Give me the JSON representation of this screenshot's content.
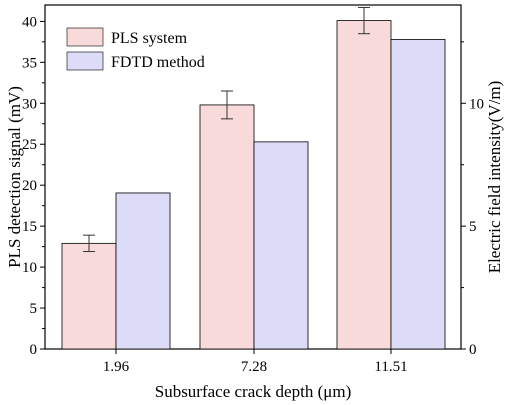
{
  "chart_data": {
    "type": "bar",
    "categories": [
      "1.96",
      "7.28",
      "11.51"
    ],
    "xlabel": "Subsurface crack depth (μm)",
    "ylabel_left": "PLS detection signal (mV)",
    "ylabel_right": "Electric field intensity(V/m)",
    "ylim_left": [
      0,
      42
    ],
    "ylim_right": [
      0,
      14
    ],
    "yticks_left": [
      0,
      5,
      10,
      15,
      20,
      25,
      30,
      35,
      40
    ],
    "yticks_right": [
      0,
      5,
      10
    ],
    "legend_position": "top-left",
    "series": [
      {
        "name": "PLS system",
        "axis": "left",
        "values": [
          12.9,
          29.8,
          40.1
        ],
        "error": [
          1.0,
          1.7,
          1.6
        ],
        "fill": "#f9dada",
        "stroke": "#000000"
      },
      {
        "name": "FDTD method",
        "axis": "right",
        "values": [
          6.35,
          8.43,
          12.6
        ],
        "fill": "#dcdcf8",
        "stroke": "#000000"
      }
    ]
  }
}
